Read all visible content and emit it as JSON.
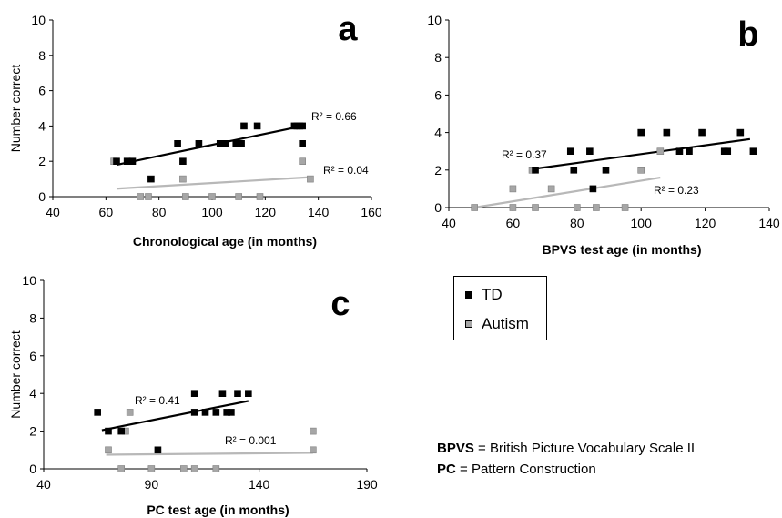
{
  "colors": {
    "td": "#000000",
    "autism": "#a6a6a6",
    "autism_line": "#b8b8b8"
  },
  "legend": {
    "items": [
      {
        "label": "TD",
        "color": "#000000"
      },
      {
        "label": "Autism",
        "color": "#a6a6a6"
      }
    ]
  },
  "notes": [
    {
      "abbr": "BPVS",
      "text": " = British Picture Vocabulary Scale II"
    },
    {
      "abbr": "PC",
      "text": " = Pattern Construction"
    }
  ],
  "chart_data": [
    {
      "panel": "a",
      "type": "scatter",
      "xlabel": "Chronological age (in months)",
      "ylabel": "Number correct",
      "xlim": [
        40,
        160
      ],
      "ylim": [
        0,
        10
      ],
      "xticks": [
        40,
        60,
        80,
        100,
        120,
        140,
        160
      ],
      "yticks": [
        0,
        2,
        4,
        6,
        8,
        10
      ],
      "grid": false,
      "series": [
        {
          "name": "TD",
          "points": [
            [
              64,
              2
            ],
            [
              68,
              2
            ],
            [
              70,
              2
            ],
            [
              77,
              1
            ],
            [
              87,
              3
            ],
            [
              89,
              2
            ],
            [
              95,
              3
            ],
            [
              103,
              3
            ],
            [
              105,
              3
            ],
            [
              109,
              3
            ],
            [
              111,
              3
            ],
            [
              112,
              4
            ],
            [
              117,
              4
            ],
            [
              131,
              4
            ],
            [
              132,
              4
            ],
            [
              133,
              4
            ],
            [
              134,
              4
            ],
            [
              134,
              3
            ]
          ],
          "trend": {
            "x1": 64,
            "y1": 1.8,
            "x2": 134,
            "y2": 4.0,
            "r2": "R² = 0.66"
          }
        },
        {
          "name": "Autism",
          "points": [
            [
              63,
              2
            ],
            [
              73,
              0
            ],
            [
              76,
              0
            ],
            [
              89,
              1
            ],
            [
              90,
              0
            ],
            [
              100,
              0
            ],
            [
              110,
              0
            ],
            [
              110,
              3
            ],
            [
              118,
              0
            ],
            [
              134,
              2
            ],
            [
              137,
              1
            ]
          ],
          "trend": {
            "x1": 64,
            "y1": 0.45,
            "x2": 137,
            "y2": 1.1,
            "r2": "R² = 0.04"
          }
        }
      ]
    },
    {
      "panel": "b",
      "type": "scatter",
      "xlabel": "BPVS test age (in months)",
      "ylabel": "",
      "xlim": [
        40,
        140
      ],
      "ylim": [
        0,
        10
      ],
      "xticks": [
        40,
        60,
        80,
        100,
        120,
        140
      ],
      "yticks": [
        0,
        2,
        4,
        6,
        8,
        10
      ],
      "grid": false,
      "series": [
        {
          "name": "TD",
          "points": [
            [
              67,
              2
            ],
            [
              78,
              3
            ],
            [
              79,
              2
            ],
            [
              84,
              3
            ],
            [
              85,
              1
            ],
            [
              89,
              2
            ],
            [
              100,
              4
            ],
            [
              108,
              4
            ],
            [
              112,
              3
            ],
            [
              115,
              3
            ],
            [
              119,
              4
            ],
            [
              126,
              3
            ],
            [
              127,
              3
            ],
            [
              131,
              4
            ],
            [
              135,
              3
            ]
          ],
          "trend": {
            "x1": 66,
            "y1": 2.05,
            "x2": 134,
            "y2": 3.65,
            "r2": "R² = 0.37"
          }
        },
        {
          "name": "Autism",
          "points": [
            [
              48,
              0
            ],
            [
              60,
              0
            ],
            [
              60,
              1
            ],
            [
              66,
              2
            ],
            [
              67,
              0
            ],
            [
              72,
              1
            ],
            [
              80,
              0
            ],
            [
              86,
              0
            ],
            [
              95,
              0
            ],
            [
              100,
              2
            ],
            [
              106,
              3
            ]
          ],
          "trend": {
            "x1": 48,
            "y1": 0.0,
            "x2": 106,
            "y2": 1.6,
            "r2": "R² = 0.23"
          }
        }
      ]
    },
    {
      "panel": "c",
      "type": "scatter",
      "xlabel": "PC test age (in months)",
      "ylabel": "Number correct",
      "xlim": [
        40,
        190
      ],
      "ylim": [
        0,
        10
      ],
      "xticks": [
        40,
        90,
        140,
        190
      ],
      "yticks": [
        0,
        2,
        4,
        6,
        8,
        10
      ],
      "grid": false,
      "series": [
        {
          "name": "TD",
          "points": [
            [
              65,
              3
            ],
            [
              70,
              2
            ],
            [
              76,
              2
            ],
            [
              93,
              1
            ],
            [
              110,
              3
            ],
            [
              110,
              4
            ],
            [
              115,
              3
            ],
            [
              120,
              3
            ],
            [
              123,
              4
            ],
            [
              125,
              3
            ],
            [
              127,
              3
            ],
            [
              130,
              4
            ],
            [
              135,
              4
            ]
          ],
          "trend": {
            "x1": 67,
            "y1": 2.05,
            "x2": 135,
            "y2": 3.6,
            "r2": "R² = 0.41"
          }
        },
        {
          "name": "Autism",
          "points": [
            [
              70,
              1
            ],
            [
              76,
              0
            ],
            [
              78,
              2
            ],
            [
              80,
              3
            ],
            [
              90,
              0
            ],
            [
              105,
              0
            ],
            [
              110,
              0
            ],
            [
              120,
              0
            ],
            [
              165,
              2
            ],
            [
              165,
              1
            ]
          ],
          "trend": {
            "x1": 69,
            "y1": 0.75,
            "x2": 165,
            "y2": 0.85,
            "r2": "R² = 0.001"
          }
        }
      ]
    }
  ]
}
